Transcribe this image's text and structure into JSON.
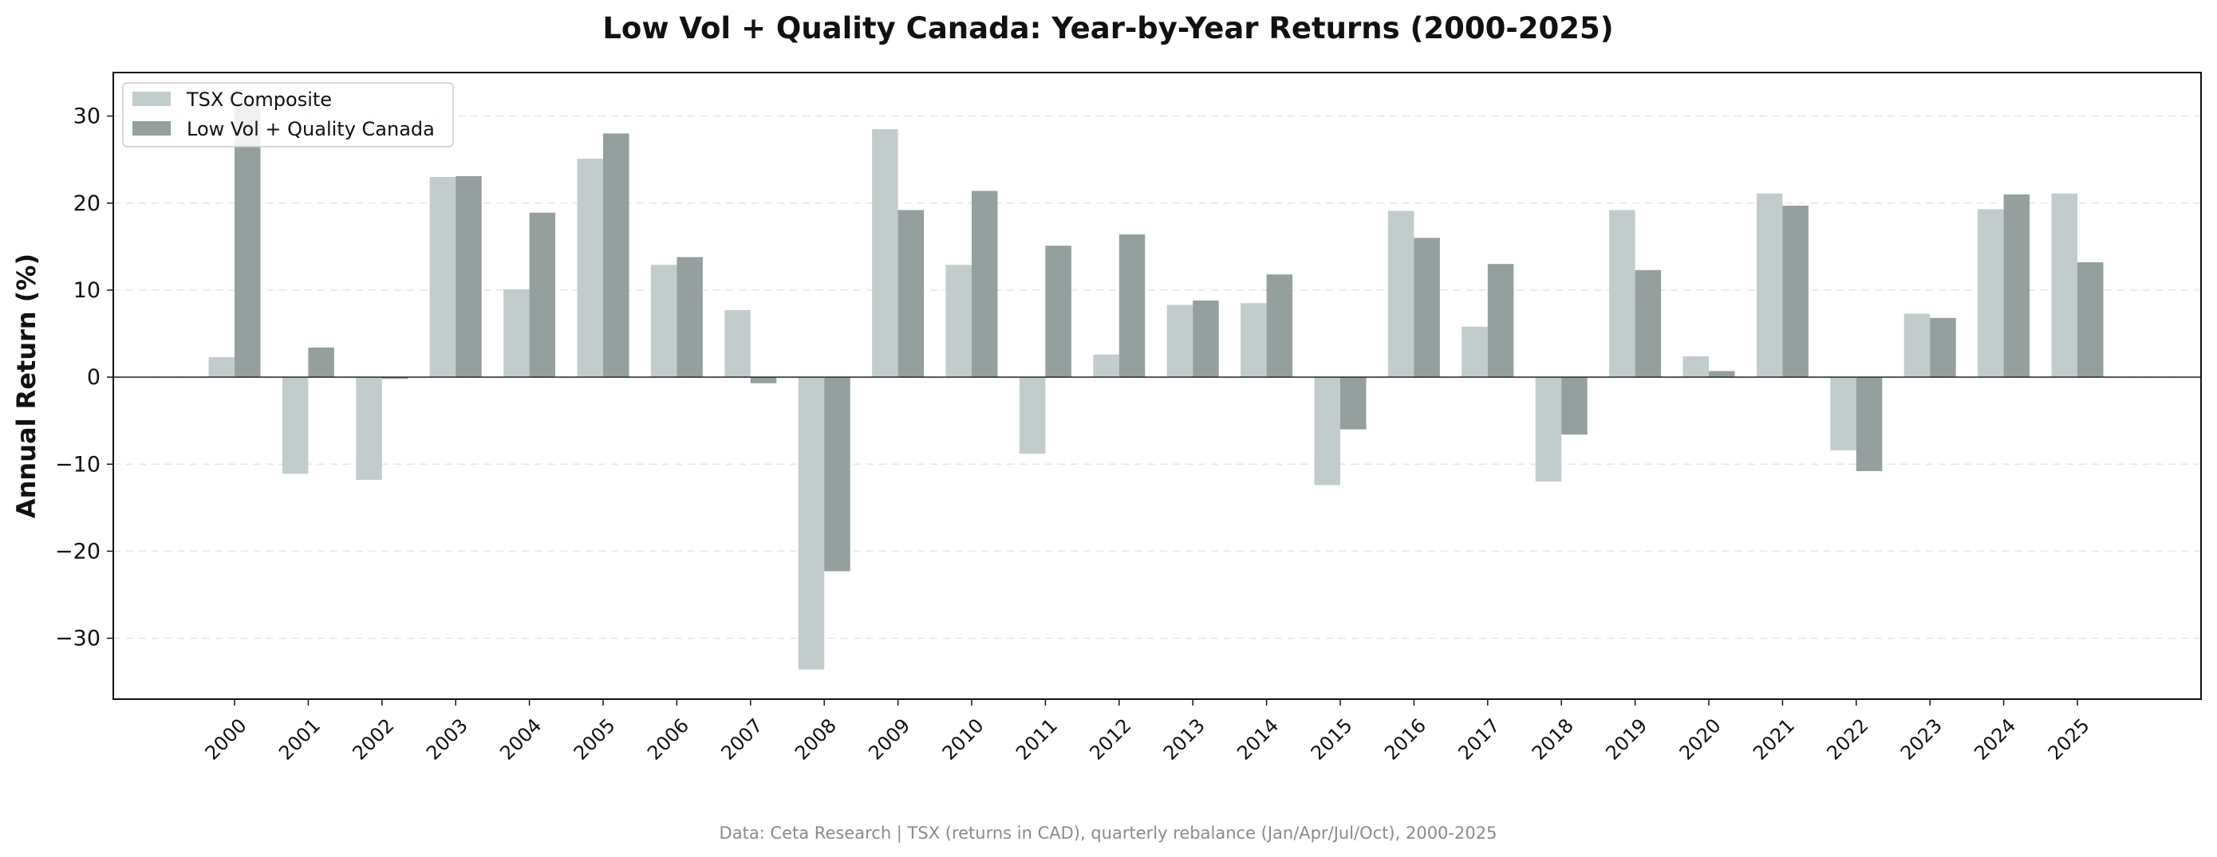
{
  "chart_data": {
    "type": "bar",
    "title": "Low Vol + Quality Canada: Year-by-Year Returns (2000-2025)",
    "xlabel": "",
    "ylabel": "Annual Return (%)",
    "ylim": [
      -37,
      35
    ],
    "yticks": [
      30,
      20,
      10,
      0,
      -10,
      -20,
      -30
    ],
    "ytick_labels": [
      "30",
      "20",
      "10",
      "0",
      "−10",
      "−20",
      "−30"
    ],
    "grid": "horizontal dashed",
    "legend_position": "top-left",
    "categories": [
      "2000",
      "2001",
      "2002",
      "2003",
      "2004",
      "2005",
      "2006",
      "2007",
      "2008",
      "2009",
      "2010",
      "2011",
      "2012",
      "2013",
      "2014",
      "2015",
      "2016",
      "2017",
      "2018",
      "2019",
      "2020",
      "2021",
      "2022",
      "2023",
      "2024",
      "2025"
    ],
    "series": [
      {
        "name": "TSX Composite",
        "color": "#c3cccc",
        "values": [
          2.3,
          -11.1,
          -11.8,
          23.0,
          10.1,
          25.1,
          12.9,
          7.7,
          -33.6,
          28.5,
          12.9,
          -8.8,
          2.6,
          8.3,
          8.5,
          -12.4,
          19.1,
          5.8,
          -12.0,
          19.2,
          2.4,
          21.1,
          -8.4,
          7.3,
          19.3,
          21.1
        ]
      },
      {
        "name": "Low Vol + Quality Canada",
        "color": "#949f9e",
        "values": [
          31.5,
          3.4,
          -0.2,
          23.1,
          18.9,
          28.0,
          13.8,
          -0.7,
          -22.3,
          19.2,
          21.4,
          15.1,
          16.4,
          8.8,
          11.8,
          -6.0,
          16.0,
          13.0,
          -6.6,
          12.3,
          0.7,
          19.7,
          -10.8,
          6.8,
          21.0,
          13.2
        ]
      }
    ],
    "footer": "Data: Ceta Research | TSX (returns in CAD), quarterly rebalance (Jan/Apr/Jul/Oct), 2000-2025"
  }
}
